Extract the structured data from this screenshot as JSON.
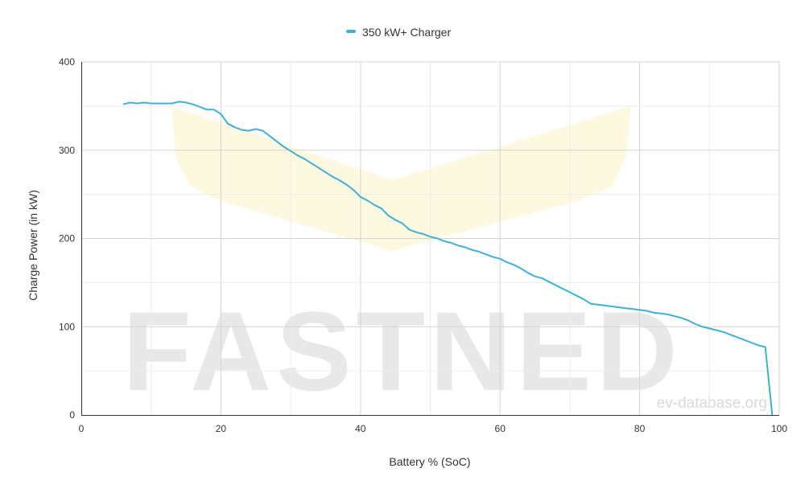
{
  "chart_data": {
    "type": "line",
    "title": "",
    "xlabel": "Battery % (SoC)",
    "ylabel": "Charge Power (in kW)",
    "xlim": [
      0,
      100
    ],
    "ylim": [
      0,
      400
    ],
    "x_ticks": [
      "0",
      "20",
      "40",
      "60",
      "80",
      "100"
    ],
    "y_ticks": [
      "0",
      "100",
      "200",
      "300",
      "400"
    ],
    "grid": true,
    "legend_position": "top-center",
    "series": [
      {
        "name": "350 kW+ Charger",
        "color": "#3fb0d8",
        "points": [
          [
            6,
            352
          ],
          [
            7,
            354
          ],
          [
            8,
            353
          ],
          [
            9,
            354
          ],
          [
            10,
            353
          ],
          [
            11,
            353
          ],
          [
            12,
            353
          ],
          [
            13,
            353
          ],
          [
            14,
            355
          ],
          [
            15,
            354
          ],
          [
            16,
            352
          ],
          [
            17,
            349
          ],
          [
            18,
            346
          ],
          [
            19,
            346
          ],
          [
            20,
            341
          ],
          [
            21,
            330
          ],
          [
            22,
            326
          ],
          [
            23,
            323
          ],
          [
            24,
            322
          ],
          [
            25,
            324
          ],
          [
            26,
            322
          ],
          [
            27,
            316
          ],
          [
            28,
            310
          ],
          [
            29,
            304
          ],
          [
            30,
            299
          ],
          [
            31,
            294
          ],
          [
            32,
            290
          ],
          [
            33,
            285
          ],
          [
            34,
            280
          ],
          [
            35,
            275
          ],
          [
            36,
            270
          ],
          [
            37,
            266
          ],
          [
            38,
            261
          ],
          [
            39,
            255
          ],
          [
            40,
            247
          ],
          [
            41,
            243
          ],
          [
            42,
            238
          ],
          [
            43,
            234
          ],
          [
            44,
            226
          ],
          [
            45,
            221
          ],
          [
            46,
            217
          ],
          [
            47,
            210
          ],
          [
            48,
            207
          ],
          [
            49,
            205
          ],
          [
            50,
            202
          ],
          [
            51,
            200
          ],
          [
            52,
            197
          ],
          [
            53,
            195
          ],
          [
            54,
            192
          ],
          [
            55,
            190
          ],
          [
            56,
            187
          ],
          [
            57,
            185
          ],
          [
            58,
            182
          ],
          [
            59,
            179
          ],
          [
            60,
            177
          ],
          [
            61,
            173
          ],
          [
            62,
            170
          ],
          [
            63,
            166
          ],
          [
            64,
            161
          ],
          [
            65,
            157
          ],
          [
            66,
            155
          ],
          [
            67,
            151
          ],
          [
            68,
            147
          ],
          [
            69,
            143
          ],
          [
            70,
            139
          ],
          [
            71,
            135
          ],
          [
            72,
            131
          ],
          [
            73,
            126
          ],
          [
            74,
            125
          ],
          [
            75,
            124
          ],
          [
            76,
            123
          ],
          [
            77,
            122
          ],
          [
            78,
            121
          ],
          [
            79,
            120
          ],
          [
            80,
            119
          ],
          [
            81,
            118
          ],
          [
            82,
            116
          ],
          [
            83,
            115
          ],
          [
            84,
            114
          ],
          [
            85,
            112
          ],
          [
            86,
            110
          ],
          [
            87,
            107
          ],
          [
            88,
            103
          ],
          [
            89,
            100
          ],
          [
            90,
            98
          ],
          [
            91,
            96
          ],
          [
            92,
            94
          ],
          [
            93,
            91
          ],
          [
            94,
            88
          ],
          [
            95,
            85
          ],
          [
            96,
            82
          ],
          [
            97,
            79
          ],
          [
            98,
            77
          ],
          [
            99,
            0
          ]
        ]
      }
    ]
  },
  "watermarks": {
    "brand_text": "FASTNED",
    "site_text": "ev-database.org"
  },
  "colors": {
    "background": "#ffffff",
    "grid": "#dddddd",
    "axis": "#333333",
    "line": "#3fb0d8",
    "watermark_text": "#e8e8e8",
    "watermark_shape": "#fdf7dd"
  }
}
